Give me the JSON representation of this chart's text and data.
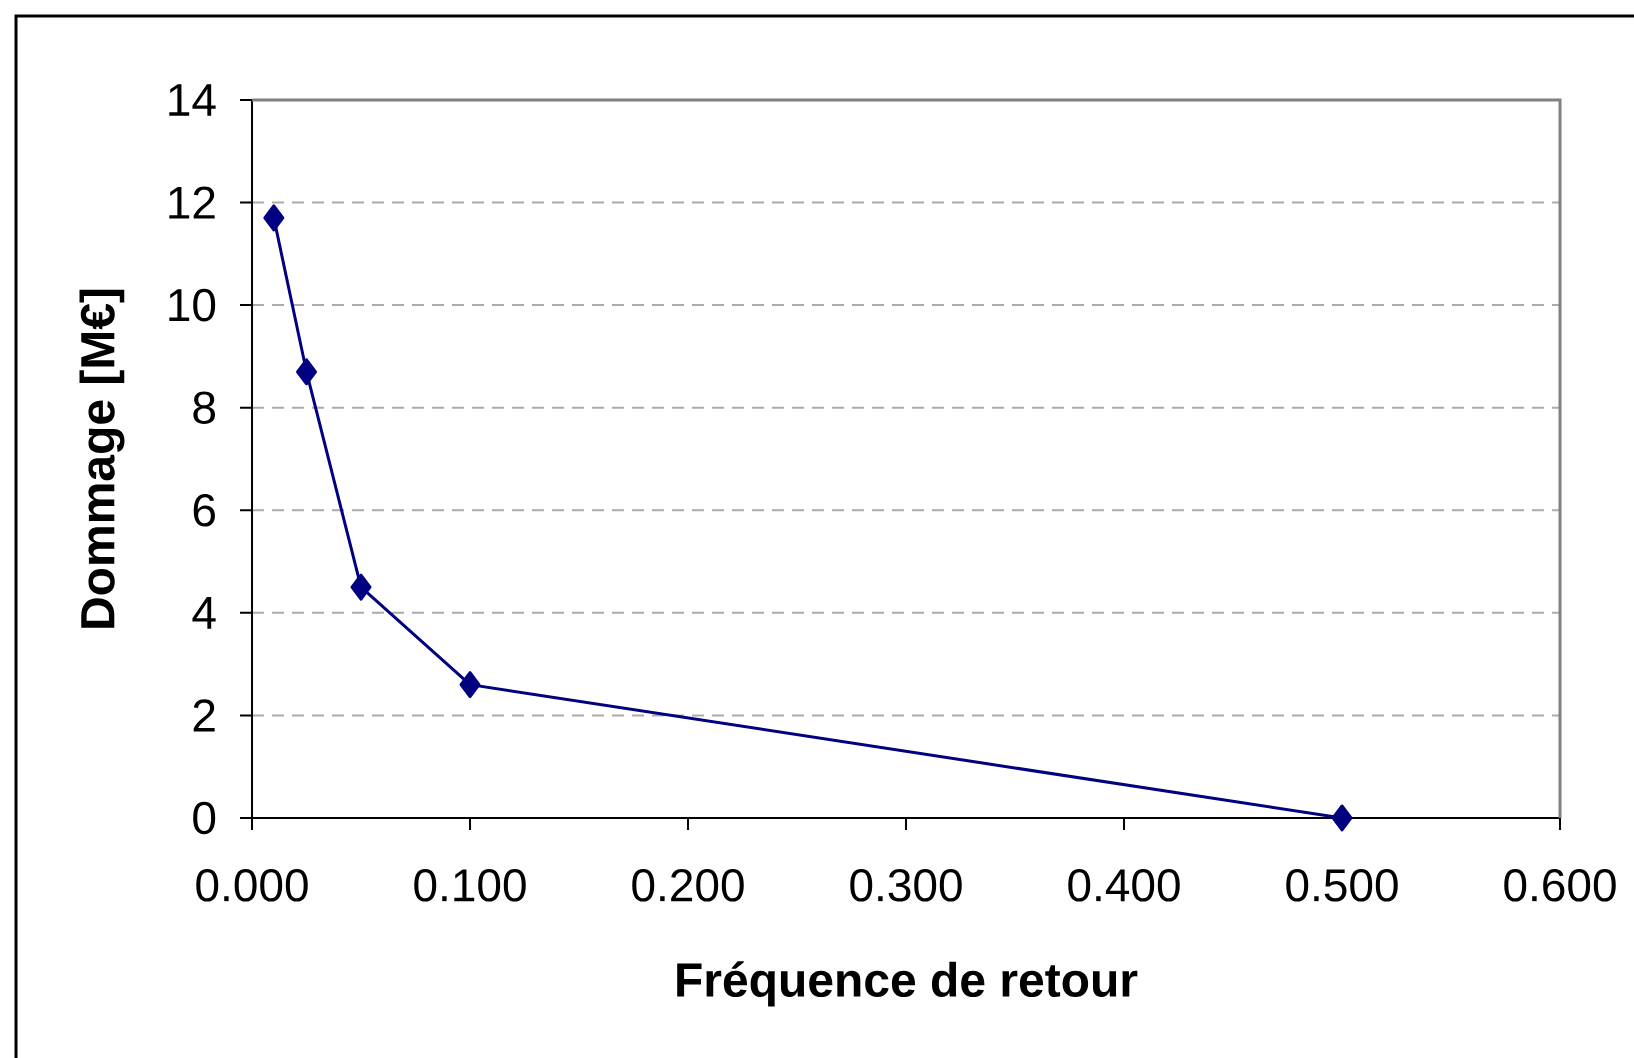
{
  "chart_data": {
    "type": "line",
    "xlabel": "Fréquence de retour",
    "ylabel": "Dommage [M€]",
    "x": [
      0.01,
      0.025,
      0.05,
      0.1,
      0.5
    ],
    "values": [
      11.7,
      8.7,
      4.5,
      2.6,
      0
    ],
    "color": "#000080",
    "xlim": [
      0,
      0.6
    ],
    "ylim": [
      0,
      14
    ],
    "xticks": [
      {
        "value": 0,
        "label": "0.000"
      },
      {
        "value": 0.1,
        "label": "0.100"
      },
      {
        "value": 0.2,
        "label": "0.200"
      },
      {
        "value": 0.3,
        "label": "0.300"
      },
      {
        "value": 0.4,
        "label": "0.400"
      },
      {
        "value": 0.5,
        "label": "0.500"
      },
      {
        "value": 0.6,
        "label": "0.600"
      }
    ],
    "yticks": [
      0,
      2,
      4,
      6,
      8,
      10,
      12,
      14
    ],
    "grid": "y",
    "marker": "diamond",
    "line_style": "solid"
  }
}
